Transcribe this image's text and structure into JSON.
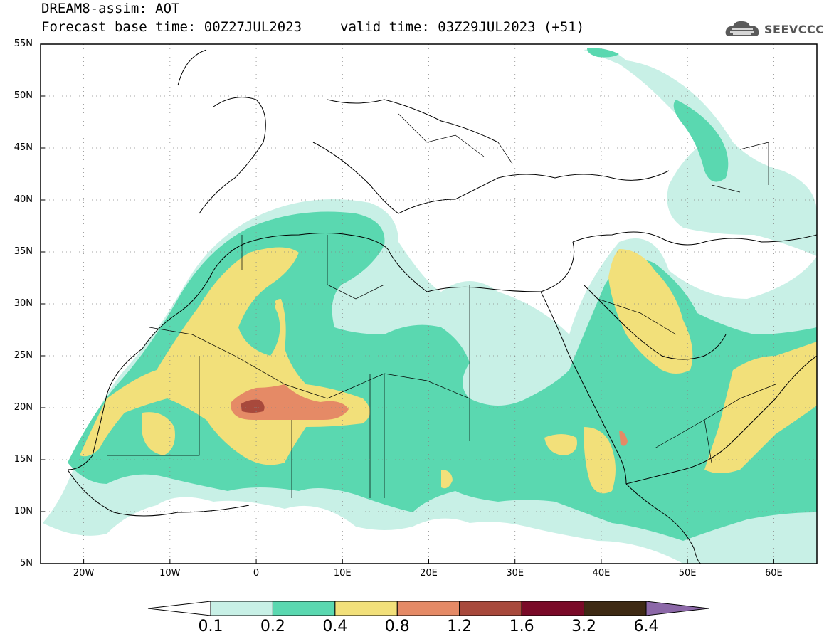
{
  "header": {
    "title": "DREAM8-assim: AOT",
    "base_time": "Forecast base time: 00Z27JUL2023",
    "valid_time": "valid time: 03Z29JUL2023 (+51)",
    "logo_text": "SEEVCCC",
    "logo_icon": "cloud-logo-icon"
  },
  "map": {
    "lat_labels": [
      "55N",
      "50N",
      "45N",
      "40N",
      "35N",
      "30N",
      "25N",
      "20N",
      "15N",
      "10N",
      "5N"
    ],
    "lon_labels": [
      "20W",
      "10W",
      "0",
      "10E",
      "20E",
      "30E",
      "40E",
      "50E",
      "60E"
    ],
    "lat_range": [
      5,
      55
    ],
    "lon_range": [
      -25,
      65
    ],
    "grid": "dotted",
    "colors": {
      "c01": "#c8f0e6",
      "c02": "#5ad8b0",
      "c04": "#f2e07a",
      "c08": "#e58a66",
      "c12": "#a8493c",
      "c16": "#7a0a28",
      "c32": "#3e2a14",
      "c64": "#8c68a8"
    }
  },
  "colorbar": {
    "labels": [
      "0.1",
      "0.2",
      "0.4",
      "0.8",
      "1.2",
      "1.6",
      "3.2",
      "6.4"
    ],
    "colors": [
      "#c8f0e6",
      "#5ad8b0",
      "#f2e07a",
      "#e58a66",
      "#a8493c",
      "#7a0a28",
      "#3e2a14"
    ],
    "over_color": "#8c68a8",
    "under_color": "#ffffff"
  }
}
